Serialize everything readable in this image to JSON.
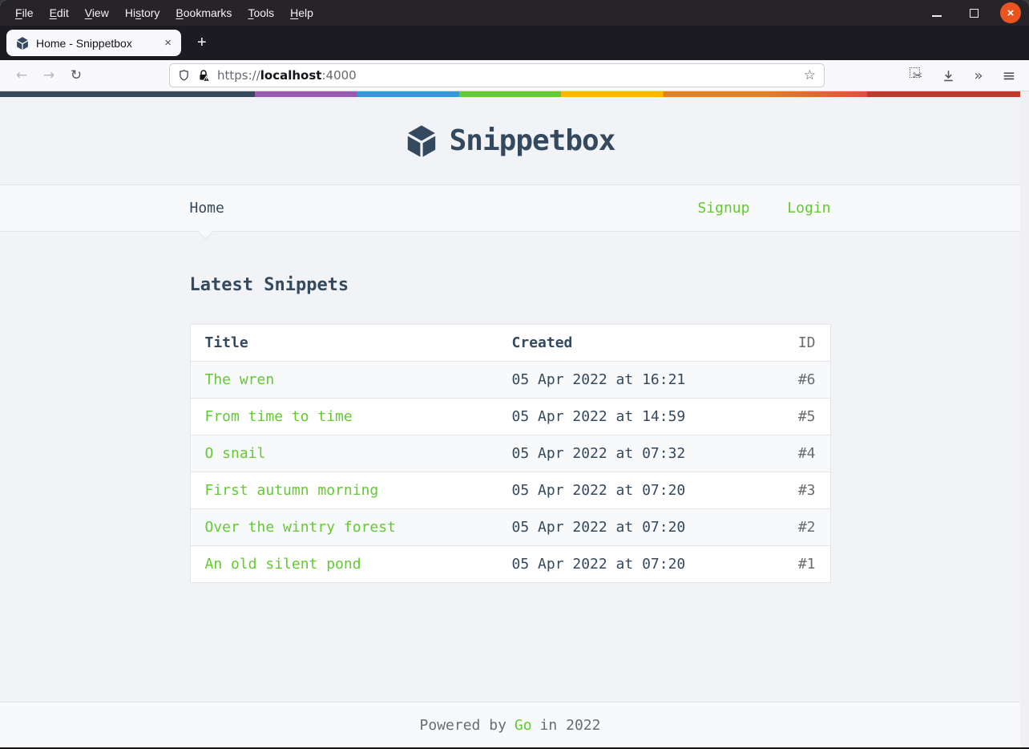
{
  "chrome": {
    "menubar": {
      "items": [
        {
          "label": "File",
          "u": 0
        },
        {
          "label": "Edit",
          "u": 0
        },
        {
          "label": "View",
          "u": 0
        },
        {
          "label": "History",
          "u": 2
        },
        {
          "label": "Bookmarks",
          "u": 0
        },
        {
          "label": "Tools",
          "u": 0
        },
        {
          "label": "Help",
          "u": 0
        }
      ]
    },
    "tab": {
      "title": "Home - Snippetbox",
      "close_glyph": "×"
    },
    "new_tab_glyph": "+",
    "window_close_glyph": "×",
    "toolbar": {
      "back_glyph": "←",
      "forward_glyph": "→",
      "reload_glyph": "↻",
      "url": {
        "scheme": "https://",
        "host": "localhost",
        "port": ":4000"
      },
      "bookmark_glyph": "☆",
      "screenshot_glyph": "✂",
      "overflow_glyph": "»",
      "menu_glyph": "≡"
    }
  },
  "page": {
    "brand": "Snippetbox",
    "nav": {
      "home": "Home",
      "signup": "Signup",
      "login": "Login"
    },
    "heading": "Latest Snippets",
    "table": {
      "headers": [
        "Title",
        "Created",
        "ID"
      ],
      "rows": [
        {
          "title": "The wren",
          "created": "05 Apr 2022 at 16:21",
          "id": "#6"
        },
        {
          "title": "From time to time",
          "created": "05 Apr 2022 at 14:59",
          "id": "#5"
        },
        {
          "title": "O snail",
          "created": "05 Apr 2022 at 07:32",
          "id": "#4"
        },
        {
          "title": "First autumn morning",
          "created": "05 Apr 2022 at 07:20",
          "id": "#3"
        },
        {
          "title": "Over the wintry forest",
          "created": "05 Apr 2022 at 07:20",
          "id": "#2"
        },
        {
          "title": "An old silent pond",
          "created": "05 Apr 2022 at 07:20",
          "id": "#1"
        }
      ]
    },
    "footer": {
      "prefix": "Powered by",
      "link": "Go",
      "suffix": "in 2022"
    }
  },
  "colors": {
    "accent_green": "#62cb31",
    "brand_navy": "#34495e",
    "body_bg": "#f1f3f6",
    "panel_bg": "#f7f9fa",
    "border": "#e4e5e7",
    "muted_text": "#6a6c6f",
    "ubuntu_orange": "#e95420",
    "gradient": [
      "#34495e",
      "#9b59b6",
      "#3498db",
      "#62cb31",
      "#ffb606",
      "#e67e22",
      "#e74c3c",
      "#c0392b"
    ]
  }
}
